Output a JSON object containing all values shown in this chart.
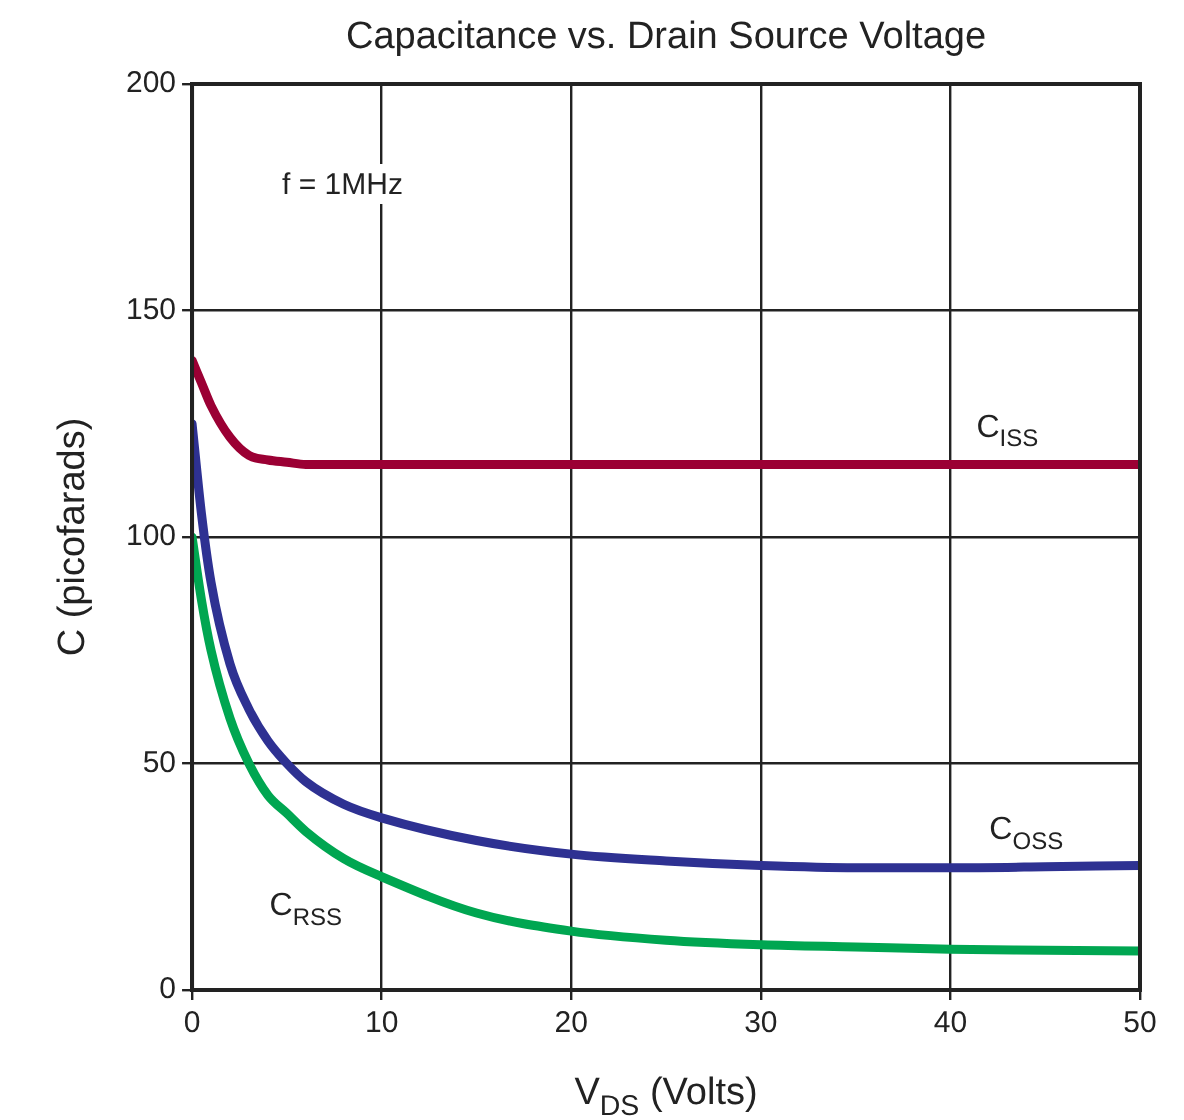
{
  "chart_data": {
    "type": "line",
    "title": "Capacitance vs. Drain Source Voltage",
    "xlabel": "V$_{DS}$ (Volts)",
    "ylabel": "C (picofarads)",
    "x": [
      0,
      0.5,
      1,
      2,
      3,
      4,
      5,
      6,
      8,
      10,
      15,
      20,
      25,
      30,
      35,
      40,
      45,
      50
    ],
    "series": [
      {
        "name": "C$_{ISS}$",
        "color": "#9b0034",
        "values": [
          139,
          134,
          129,
          122,
          118,
          117,
          116.5,
          116,
          116,
          116,
          116,
          116,
          116,
          116,
          116,
          116,
          116,
          116
        ]
      },
      {
        "name": "C$_{OSS}$",
        "color": "#2e3192",
        "values": [
          125,
          105,
          90,
          72,
          62,
          55,
          50,
          46,
          41,
          38,
          33,
          30,
          28.5,
          27.5,
          27,
          27,
          27.2,
          27.5
        ]
      },
      {
        "name": "C$_{RSS}$",
        "color": "#00a651",
        "values": [
          100,
          86,
          75,
          60,
          50,
          43,
          39,
          35,
          29,
          25,
          17,
          13,
          11,
          10,
          9.5,
          9,
          8.8,
          8.6
        ]
      }
    ],
    "xlim": [
      0,
      50
    ],
    "xticks": [
      0,
      10,
      20,
      30,
      40,
      50
    ],
    "ylim": [
      0,
      200
    ],
    "yticks": [
      0,
      50,
      100,
      150,
      200
    ],
    "grid": true,
    "legend": false,
    "marker": "none",
    "line_style": "solid",
    "annotations": [
      "f = 1MHz"
    ]
  }
}
